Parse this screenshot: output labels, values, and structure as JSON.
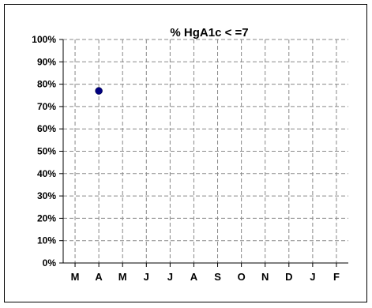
{
  "chart_data": {
    "type": "scatter",
    "title": "%  HgA1c < =7",
    "xlabel": "",
    "ylabel": "",
    "categories": [
      "M",
      "A",
      "M",
      "J",
      "J",
      "A",
      "S",
      "O",
      "N",
      "D",
      "J",
      "F"
    ],
    "y_ticks": [
      "0%",
      "10%",
      "20%",
      "30%",
      "40%",
      "50%",
      "60%",
      "70%",
      "80%",
      "90%",
      "100%"
    ],
    "ylim": [
      0,
      100
    ],
    "grid": true,
    "series": [
      {
        "values": [
          null,
          77,
          null,
          null,
          null,
          null,
          null,
          null,
          null,
          null,
          null,
          null
        ],
        "color": "#00007f"
      }
    ]
  }
}
